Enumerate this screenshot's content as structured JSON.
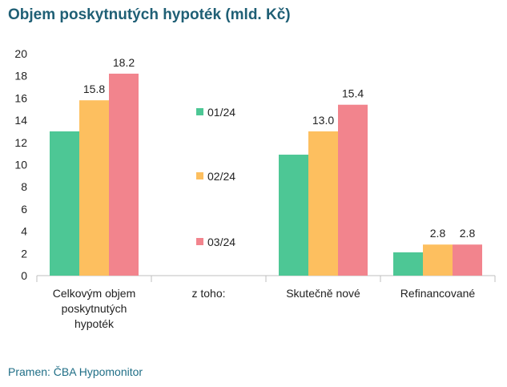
{
  "header": {
    "title": "Objem poskytnutých hypoték (mld. Kč)"
  },
  "footer": {
    "source": "Pramen: ČBA Hypomonitor"
  },
  "chart_data": {
    "type": "bar",
    "title": "Objem poskytnutých hypoték (mld. Kč)",
    "xlabel": "",
    "ylabel": "",
    "ylim": [
      0,
      20
    ],
    "yticks": [
      0,
      2,
      4,
      6,
      8,
      10,
      12,
      14,
      16,
      18,
      20
    ],
    "grid": false,
    "legend": "center (between groups)",
    "categories": [
      [
        "Celkovým objem",
        "poskytnutých",
        "hypoték"
      ],
      [
        "z toho:"
      ],
      [
        "Skutečně nové"
      ],
      [
        "Refinancované"
      ]
    ],
    "series": [
      {
        "name": "01/24",
        "color": "#4dc795",
        "values": [
          13.0,
          null,
          10.9,
          2.1
        ],
        "labels": [
          null,
          null,
          null,
          null
        ]
      },
      {
        "name": "02/24",
        "color": "#fdbf5f",
        "values": [
          15.8,
          null,
          13.0,
          2.8
        ],
        "labels": [
          "15.8",
          null,
          "13.0",
          "2.8"
        ]
      },
      {
        "name": "03/24",
        "color": "#f2848d",
        "values": [
          18.2,
          null,
          15.4,
          2.8
        ],
        "labels": [
          "18.2",
          null,
          "15.4",
          "2.8"
        ]
      }
    ]
  }
}
